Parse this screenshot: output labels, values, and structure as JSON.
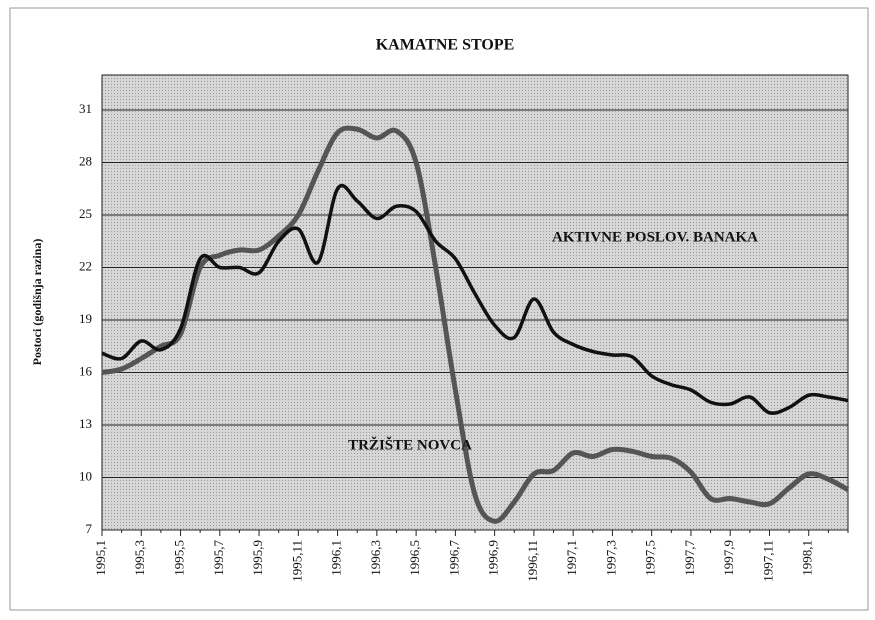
{
  "chart_data": {
    "type": "line",
    "title": "KAMATNE STOPE",
    "y_label": "Postoci (godišnja razina)",
    "categories": [
      "1995,1",
      null,
      "1995,3",
      null,
      "1995,5",
      null,
      "1995,7",
      null,
      "1995,9",
      null,
      "1995,11",
      null,
      "1996,1",
      null,
      "1996,3",
      null,
      "1996,5",
      null,
      "1996,7",
      null,
      "1996,9",
      null,
      "1996,11",
      null,
      "1997,1",
      null,
      "1997,3",
      null,
      "1997,5",
      null,
      "1997,7",
      null,
      "1997,9",
      null,
      "1997,11",
      null,
      "1998,1",
      null,
      null
    ],
    "series": [
      {
        "name": "AKTIVNE POSLOV. BANAKA",
        "color": "#111111",
        "values": [
          17.1,
          16.8,
          17.8,
          17.3,
          18.5,
          22.5,
          22.0,
          22.0,
          21.7,
          23.5,
          24.2,
          22.3,
          26.5,
          25.8,
          24.8,
          25.5,
          25.2,
          23.5,
          22.5,
          20.5,
          18.7,
          18.0,
          20.2,
          18.3,
          17.6,
          17.2,
          17.0,
          16.9,
          15.8,
          15.3,
          15.0,
          14.3,
          14.2,
          14.6,
          13.7,
          14.0,
          14.7,
          14.6,
          14.4
        ]
      },
      {
        "name": "TRŽIŠTE NOVCA",
        "color": "#555555",
        "values": [
          16.0,
          16.2,
          16.8,
          17.5,
          18.2,
          22.0,
          22.7,
          23.0,
          23.0,
          23.8,
          25.0,
          27.5,
          29.7,
          29.9,
          29.4,
          29.8,
          28.0,
          22.0,
          15.0,
          9.0,
          7.5,
          8.6,
          10.2,
          10.4,
          11.4,
          11.2,
          11.6,
          11.5,
          11.2,
          11.1,
          10.3,
          8.8,
          8.8,
          8.6,
          8.5,
          9.4,
          10.2,
          9.9,
          9.3
        ]
      }
    ],
    "ylim": [
      7,
      33
    ],
    "yticks": [
      7,
      10,
      13,
      16,
      19,
      22,
      25,
      28,
      31
    ],
    "grid": true
  }
}
